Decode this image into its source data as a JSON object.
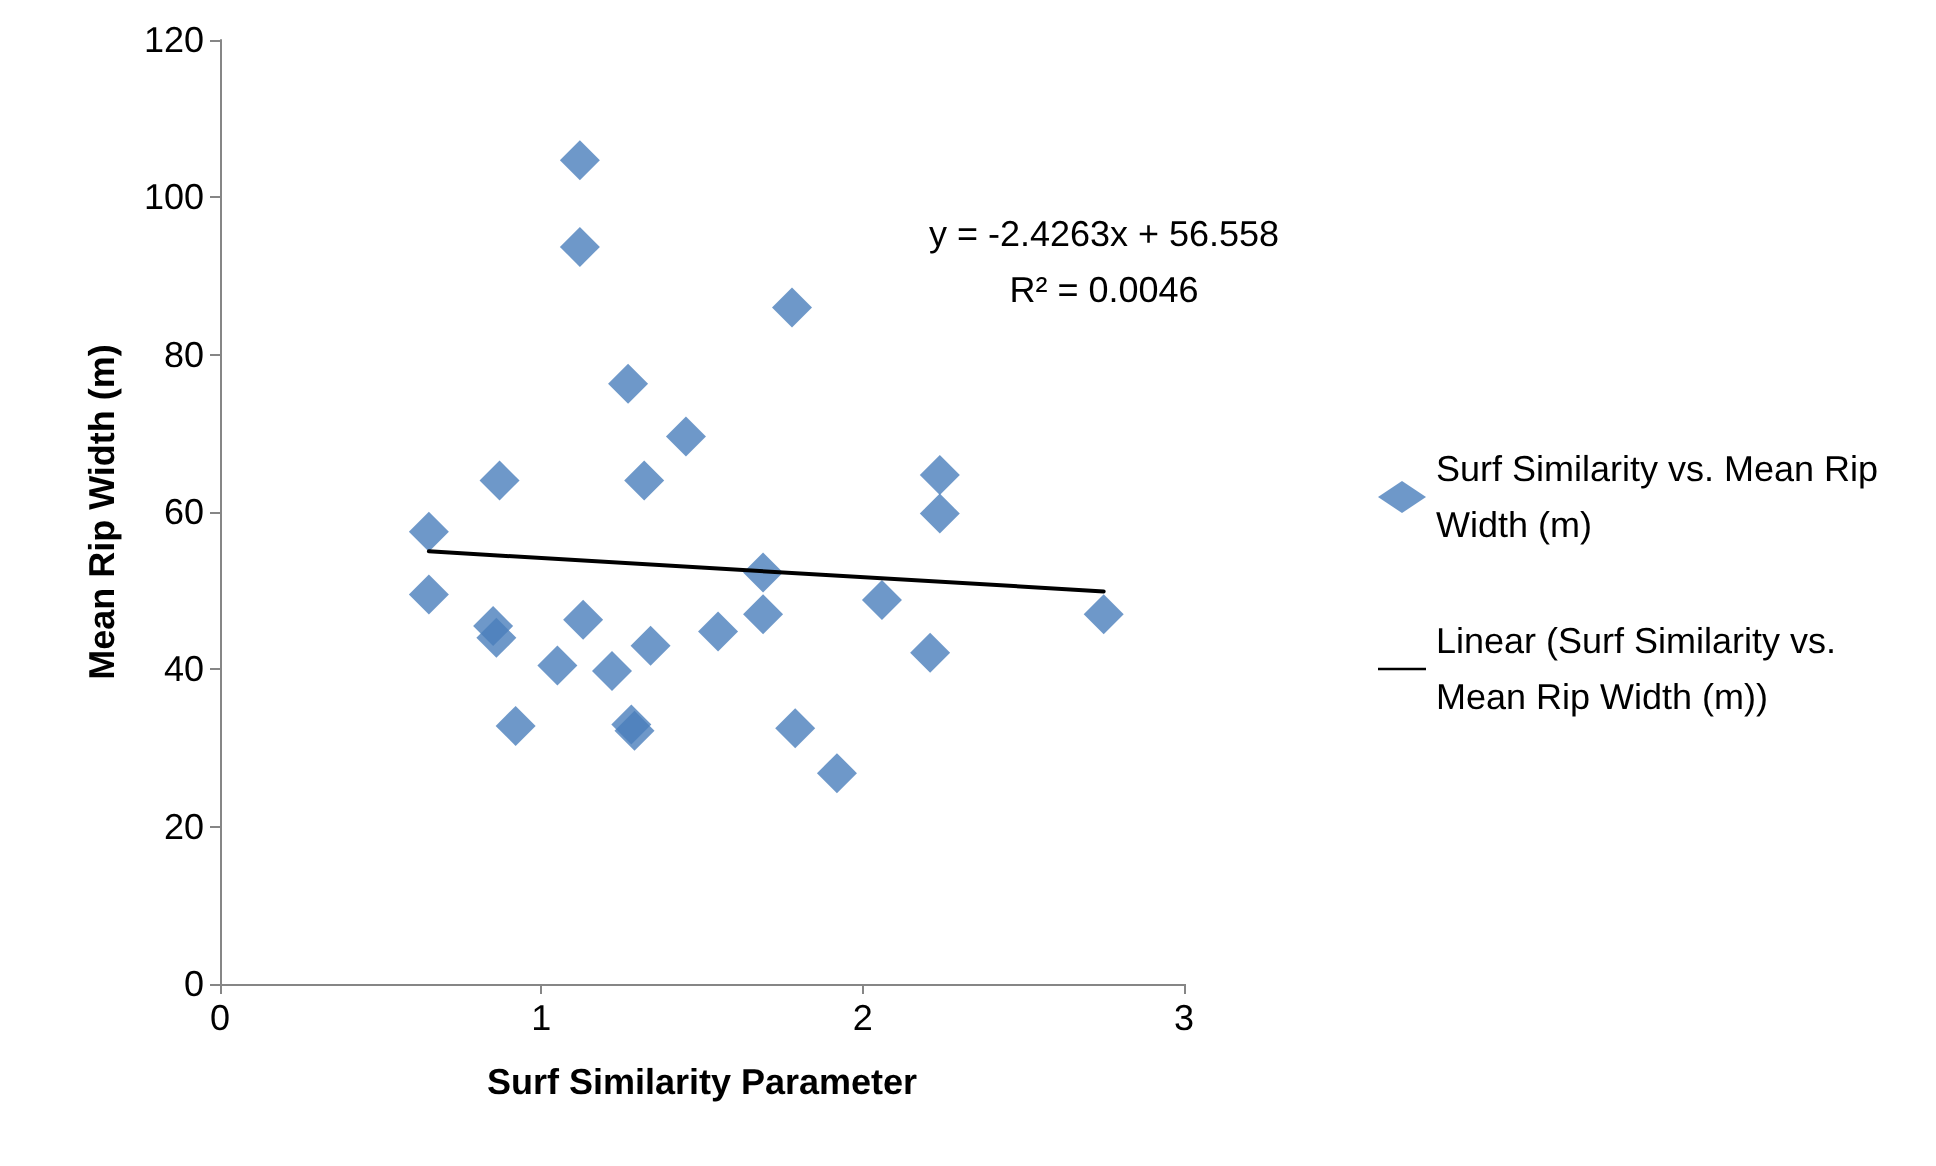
{
  "chart_data": {
    "type": "scatter",
    "xlabel": "Surf Similarity Parameter",
    "ylabel": "Mean Rip Width (m)",
    "xlim": [
      0,
      3
    ],
    "xticks": [
      0,
      1,
      2,
      3
    ],
    "ylim": [
      0,
      120
    ],
    "yticks": [
      0,
      20,
      40,
      60,
      80,
      100,
      120
    ],
    "grid": false,
    "legend": "right",
    "marker": "diamond",
    "annotations": [
      "y = -2.4263x + 56.558\nR² = 0.0046"
    ],
    "series": [
      {
        "name": "Surf Similarity vs. Mean Rip Width (m)",
        "color": "#4a7ebb",
        "x": [
          0.65,
          0.65,
          0.85,
          0.86,
          0.87,
          0.92,
          1.05,
          1.12,
          1.12,
          1.13,
          1.22,
          1.27,
          1.28,
          1.29,
          1.32,
          1.34,
          1.45,
          1.55,
          1.69,
          1.69,
          1.78,
          1.79,
          1.92,
          2.06,
          2.21,
          2.24,
          2.24,
          2.75
        ],
        "values": [
          57.5,
          49.5,
          45.5,
          44,
          64,
          32.8,
          40.5,
          104.7,
          93.7,
          46.3,
          39.8,
          76.3,
          33,
          32.2,
          64,
          43,
          69.6,
          44.8,
          52.3,
          47,
          86,
          32.5,
          26.8,
          48.8,
          42.1,
          64.7,
          59.8,
          47
        ]
      },
      {
        "name": "Linear (Surf Similarity vs. Mean Rip Width (m))",
        "type": "line",
        "color": "#000000",
        "marker": "none",
        "x": [
          0.65,
          2.75
        ],
        "values": [
          55.0,
          49.9
        ]
      }
    ]
  }
}
